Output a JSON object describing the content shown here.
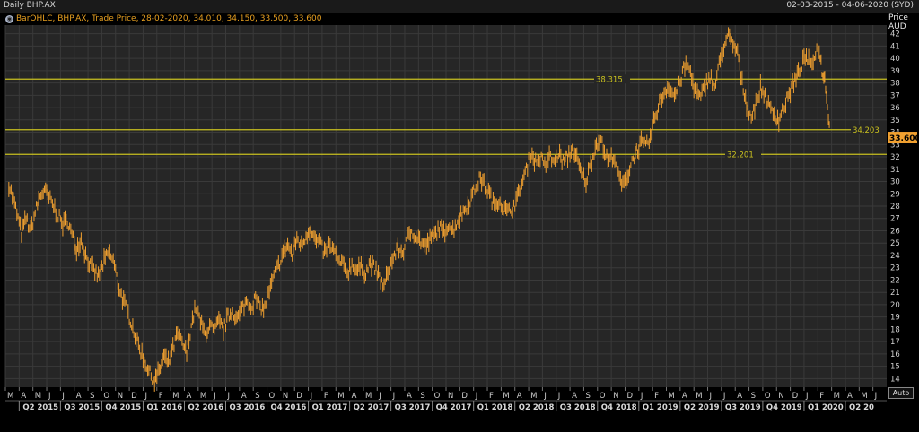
{
  "header": {
    "title": "Daily BHP.AX",
    "date_range": "02-03-2015 - 04-06-2020 (SYD)"
  },
  "legend": {
    "text": "BarOHLC, BHP.AX, Trade Price, 28-02-2020, 34.010, 34.150, 33.500, 33.600"
  },
  "axis": {
    "price_label": "Price",
    "currency_label": "AUD",
    "auto_label": "Auto"
  },
  "colors": {
    "background": "#000000",
    "plot_background": "#262626",
    "grid": "#3a3a3a",
    "price_bars": "#f0a030",
    "hlines": "#c8c020",
    "last_price_badge": "#f0a030"
  },
  "chart_data": {
    "type": "bar",
    "subtype": "ohlc",
    "title": "Daily BHP.AX",
    "ylabel": "Price AUD",
    "ylim": [
      13.3,
      42.7
    ],
    "y_ticks": [
      14,
      15,
      16,
      17,
      18,
      19,
      20,
      21,
      22,
      23,
      24,
      25,
      26,
      27,
      28,
      29,
      30,
      31,
      32,
      33,
      34,
      35,
      36,
      37,
      38,
      39,
      40,
      41,
      42
    ],
    "month_labels": [
      "M",
      "A",
      "M",
      "J",
      "J",
      "A",
      "S",
      "O",
      "N",
      "D",
      "J",
      "F",
      "M",
      "A",
      "M",
      "J",
      "J",
      "A",
      "S",
      "O",
      "N",
      "D",
      "J",
      "F",
      "M",
      "A",
      "M",
      "J",
      "J",
      "A",
      "S",
      "O",
      "N",
      "D",
      "J",
      "F",
      "M",
      "A",
      "M",
      "J",
      "J",
      "A",
      "S",
      "O",
      "N",
      "D",
      "J",
      "F",
      "M",
      "A",
      "M",
      "J",
      "J",
      "A",
      "S",
      "O",
      "N",
      "D",
      "J",
      "F",
      "M",
      "A",
      "M",
      "J"
    ],
    "quarter_labels": [
      "Q2 2015",
      "Q3 2015",
      "Q4 2015",
      "Q1 2016",
      "Q2 2016",
      "Q3 2016",
      "Q4 2016",
      "Q1 2017",
      "Q2 2017",
      "Q3 2017",
      "Q4 2017",
      "Q1 2018",
      "Q2 2018",
      "Q3 2018",
      "Q4 2018",
      "Q1 2019",
      "Q2 2019",
      "Q3 2019",
      "Q4 2019",
      "Q1 2020",
      "Q2 20"
    ],
    "x_start": "2015-03",
    "x_end": "2020-06",
    "series": [
      {
        "values": [
          {
            "x": "2015-03",
            "y": 29.8
          },
          {
            "x": "2015-03",
            "y": 27.8
          },
          {
            "x": "2015-04",
            "y": 25.8
          },
          {
            "x": "2015-04",
            "y": 27.0
          },
          {
            "x": "2015-04",
            "y": 26.0
          },
          {
            "x": "2015-05",
            "y": 27.5
          },
          {
            "x": "2015-05",
            "y": 28.8
          },
          {
            "x": "2015-05",
            "y": 29.3
          },
          {
            "x": "2015-06",
            "y": 28.5
          },
          {
            "x": "2015-06",
            "y": 27.4
          },
          {
            "x": "2015-07",
            "y": 26.5
          },
          {
            "x": "2015-07",
            "y": 26.9
          },
          {
            "x": "2015-07",
            "y": 25.6
          },
          {
            "x": "2015-08",
            "y": 24.6
          },
          {
            "x": "2015-08",
            "y": 25.3
          },
          {
            "x": "2015-08",
            "y": 24.0
          },
          {
            "x": "2015-09",
            "y": 23.0
          },
          {
            "x": "2015-09",
            "y": 22.3
          },
          {
            "x": "2015-10",
            "y": 23.5
          },
          {
            "x": "2015-10",
            "y": 24.2
          },
          {
            "x": "2015-10",
            "y": 23.6
          },
          {
            "x": "2015-11",
            "y": 21.8
          },
          {
            "x": "2015-11",
            "y": 20.5
          },
          {
            "x": "2015-11",
            "y": 19.5
          },
          {
            "x": "2015-12",
            "y": 18.5
          },
          {
            "x": "2015-12",
            "y": 17.2
          },
          {
            "x": "2015-12",
            "y": 16.2
          },
          {
            "x": "2016-01",
            "y": 15.3
          },
          {
            "x": "2016-01",
            "y": 14.4
          },
          {
            "x": "2016-01",
            "y": 13.8
          },
          {
            "x": "2016-02",
            "y": 14.6
          },
          {
            "x": "2016-02",
            "y": 15.8
          },
          {
            "x": "2016-02",
            "y": 15.2
          },
          {
            "x": "2016-03",
            "y": 16.4
          },
          {
            "x": "2016-03",
            "y": 17.6
          },
          {
            "x": "2016-03",
            "y": 16.9
          },
          {
            "x": "2016-04",
            "y": 16.0
          },
          {
            "x": "2016-04",
            "y": 18.4
          },
          {
            "x": "2016-04",
            "y": 19.8
          },
          {
            "x": "2016-05",
            "y": 18.6
          },
          {
            "x": "2016-05",
            "y": 17.6
          },
          {
            "x": "2016-05",
            "y": 18.3
          },
          {
            "x": "2016-06",
            "y": 17.8
          },
          {
            "x": "2016-06",
            "y": 18.6
          },
          {
            "x": "2016-06",
            "y": 18.0
          },
          {
            "x": "2016-07",
            "y": 19.0
          },
          {
            "x": "2016-07",
            "y": 19.5
          },
          {
            "x": "2016-07",
            "y": 18.8
          },
          {
            "x": "2016-08",
            "y": 19.6
          },
          {
            "x": "2016-08",
            "y": 20.3
          },
          {
            "x": "2016-08",
            "y": 19.9
          },
          {
            "x": "2016-09",
            "y": 20.5
          },
          {
            "x": "2016-09",
            "y": 19.8
          },
          {
            "x": "2016-09",
            "y": 19.7
          },
          {
            "x": "2016-10",
            "y": 21.0
          },
          {
            "x": "2016-10",
            "y": 22.3
          },
          {
            "x": "2016-10",
            "y": 23.2
          },
          {
            "x": "2016-11",
            "y": 24.2
          },
          {
            "x": "2016-11",
            "y": 24.9
          },
          {
            "x": "2016-11",
            "y": 24.0
          },
          {
            "x": "2016-12",
            "y": 25.4
          },
          {
            "x": "2016-12",
            "y": 24.8
          },
          {
            "x": "2016-12",
            "y": 25.6
          },
          {
            "x": "2017-01",
            "y": 26.3
          },
          {
            "x": "2017-01",
            "y": 25.2
          },
          {
            "x": "2017-01",
            "y": 25.0
          },
          {
            "x": "2017-02",
            "y": 24.2
          },
          {
            "x": "2017-02",
            "y": 24.8
          },
          {
            "x": "2017-02",
            "y": 24.4
          },
          {
            "x": "2017-03",
            "y": 23.6
          },
          {
            "x": "2017-03",
            "y": 23.2
          },
          {
            "x": "2017-03",
            "y": 22.6
          },
          {
            "x": "2017-04",
            "y": 23.3
          },
          {
            "x": "2017-04",
            "y": 22.8
          },
          {
            "x": "2017-04",
            "y": 23.0
          },
          {
            "x": "2017-05",
            "y": 22.6
          },
          {
            "x": "2017-05",
            "y": 23.4
          },
          {
            "x": "2017-05",
            "y": 22.9
          },
          {
            "x": "2017-06",
            "y": 22.2
          },
          {
            "x": "2017-06",
            "y": 21.4
          },
          {
            "x": "2017-06",
            "y": 22.8
          },
          {
            "x": "2017-07",
            "y": 23.8
          },
          {
            "x": "2017-07",
            "y": 24.6
          },
          {
            "x": "2017-07",
            "y": 24.2
          },
          {
            "x": "2017-08",
            "y": 25.3
          },
          {
            "x": "2017-08",
            "y": 26.0
          },
          {
            "x": "2017-08",
            "y": 25.6
          },
          {
            "x": "2017-09",
            "y": 25.1
          },
          {
            "x": "2017-09",
            "y": 24.7
          },
          {
            "x": "2017-09",
            "y": 25.3
          },
          {
            "x": "2017-10",
            "y": 25.6
          },
          {
            "x": "2017-10",
            "y": 26.3
          },
          {
            "x": "2017-10",
            "y": 25.8
          },
          {
            "x": "2017-11",
            "y": 26.6
          },
          {
            "x": "2017-11",
            "y": 26.0
          },
          {
            "x": "2017-11",
            "y": 26.8
          },
          {
            "x": "2017-12",
            "y": 27.4
          },
          {
            "x": "2017-12",
            "y": 28.0
          },
          {
            "x": "2017-12",
            "y": 28.7
          },
          {
            "x": "2018-01",
            "y": 29.6
          },
          {
            "x": "2018-01",
            "y": 30.3
          },
          {
            "x": "2018-01",
            "y": 29.6
          },
          {
            "x": "2018-02",
            "y": 29.0
          },
          {
            "x": "2018-02",
            "y": 28.0
          },
          {
            "x": "2018-02",
            "y": 28.6
          },
          {
            "x": "2018-03",
            "y": 27.8
          },
          {
            "x": "2018-03",
            "y": 27.5
          },
          {
            "x": "2018-03",
            "y": 27.9
          },
          {
            "x": "2018-04",
            "y": 28.6
          },
          {
            "x": "2018-04",
            "y": 29.8
          },
          {
            "x": "2018-04",
            "y": 31.0
          },
          {
            "x": "2018-05",
            "y": 32.3
          },
          {
            "x": "2018-05",
            "y": 31.6
          },
          {
            "x": "2018-05",
            "y": 32.0
          },
          {
            "x": "2018-06",
            "y": 31.2
          },
          {
            "x": "2018-06",
            "y": 32.0
          },
          {
            "x": "2018-06",
            "y": 31.6
          },
          {
            "x": "2018-07",
            "y": 32.3
          },
          {
            "x": "2018-07",
            "y": 31.6
          },
          {
            "x": "2018-07",
            "y": 32.0
          },
          {
            "x": "2018-08",
            "y": 32.6
          },
          {
            "x": "2018-08",
            "y": 31.8
          },
          {
            "x": "2018-08",
            "y": 30.6
          },
          {
            "x": "2018-09",
            "y": 30.0
          },
          {
            "x": "2018-09",
            "y": 31.4
          },
          {
            "x": "2018-09",
            "y": 32.8
          },
          {
            "x": "2018-10",
            "y": 33.6
          },
          {
            "x": "2018-10",
            "y": 32.4
          },
          {
            "x": "2018-10",
            "y": 31.6
          },
          {
            "x": "2018-11",
            "y": 32.2
          },
          {
            "x": "2018-11",
            "y": 30.6
          },
          {
            "x": "2018-11",
            "y": 29.6
          },
          {
            "x": "2018-12",
            "y": 30.4
          },
          {
            "x": "2018-12",
            "y": 31.7
          },
          {
            "x": "2018-12",
            "y": 32.5
          },
          {
            "x": "2019-01",
            "y": 33.1
          },
          {
            "x": "2019-01",
            "y": 32.8
          },
          {
            "x": "2019-01",
            "y": 33.5
          },
          {
            "x": "2019-02",
            "y": 35.2
          },
          {
            "x": "2019-02",
            "y": 36.4
          },
          {
            "x": "2019-02",
            "y": 37.2
          },
          {
            "x": "2019-03",
            "y": 37.8
          },
          {
            "x": "2019-03",
            "y": 37.0
          },
          {
            "x": "2019-03",
            "y": 37.4
          },
          {
            "x": "2019-04",
            "y": 38.8
          },
          {
            "x": "2019-04",
            "y": 39.8
          },
          {
            "x": "2019-04",
            "y": 38.4
          },
          {
            "x": "2019-05",
            "y": 37.1
          },
          {
            "x": "2019-05",
            "y": 36.8
          },
          {
            "x": "2019-05",
            "y": 37.8
          },
          {
            "x": "2019-06",
            "y": 38.6
          },
          {
            "x": "2019-06",
            "y": 37.6
          },
          {
            "x": "2019-06",
            "y": 39.5
          },
          {
            "x": "2019-07",
            "y": 41.0
          },
          {
            "x": "2019-07",
            "y": 41.8
          },
          {
            "x": "2019-07",
            "y": 41.0
          },
          {
            "x": "2019-08",
            "y": 40.6
          },
          {
            "x": "2019-08",
            "y": 38.0
          },
          {
            "x": "2019-08",
            "y": 36.3
          },
          {
            "x": "2019-09",
            "y": 35.2
          },
          {
            "x": "2019-09",
            "y": 36.4
          },
          {
            "x": "2019-09",
            "y": 37.6
          },
          {
            "x": "2019-10",
            "y": 37.0
          },
          {
            "x": "2019-10",
            "y": 35.9
          },
          {
            "x": "2019-10",
            "y": 35.5
          },
          {
            "x": "2019-11",
            "y": 35.0
          },
          {
            "x": "2019-11",
            "y": 36.0
          },
          {
            "x": "2019-11",
            "y": 36.8
          },
          {
            "x": "2019-12",
            "y": 37.9
          },
          {
            "x": "2019-12",
            "y": 38.5
          },
          {
            "x": "2019-12",
            "y": 39.5
          },
          {
            "x": "2020-01",
            "y": 40.2
          },
          {
            "x": "2020-01",
            "y": 39.2
          },
          {
            "x": "2020-01",
            "y": 40.6
          },
          {
            "x": "2020-02",
            "y": 40.9
          },
          {
            "x": "2020-02",
            "y": 39.0
          },
          {
            "x": "2020-02",
            "y": 38.3
          },
          {
            "x": "2020-02",
            "y": 36.4
          },
          {
            "x": "2020-02",
            "y": 33.6
          }
        ]
      }
    ],
    "reference_lines": [
      {
        "value": 38.315,
        "label": "38.315"
      },
      {
        "value": 34.203,
        "label": "34.203"
      },
      {
        "value": 32.201,
        "label": "32.201"
      }
    ],
    "last_price": {
      "value": 33.6,
      "label": "33.600"
    },
    "grid": true,
    "legend_position": "top-left"
  }
}
